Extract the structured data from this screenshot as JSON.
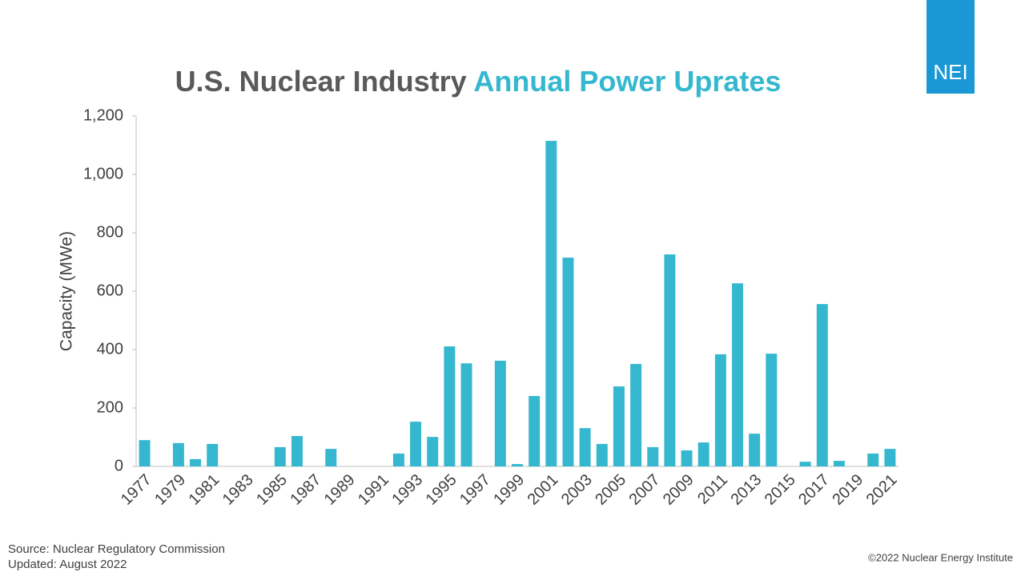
{
  "chart_data": {
    "type": "bar",
    "title": "U.S. Nuclear Industry",
    "title_highlight": "Annual Power Uprates",
    "title_color": "#595959",
    "highlight_color": "#35b8cf",
    "y_label": "Capacity (MWe)",
    "categories": [
      "1977",
      null,
      "1979",
      null,
      "1981",
      null,
      "1983",
      null,
      "1985",
      null,
      "1987",
      null,
      "1989",
      null,
      "1991",
      null,
      "1993",
      null,
      "1995",
      null,
      "1997",
      null,
      "1999",
      null,
      "2001",
      null,
      "2003",
      null,
      "2005",
      null,
      "2007",
      null,
      "2009",
      null,
      "2011",
      null,
      "2013",
      null,
      "2015",
      null,
      "2017",
      null,
      "2019",
      null,
      "2021"
    ],
    "values": [
      90,
      0,
      80,
      25,
      77,
      0,
      0,
      0,
      66,
      104,
      0,
      60,
      0,
      0,
      0,
      44,
      153,
      101,
      411,
      353,
      0,
      362,
      8,
      241,
      1115,
      715,
      131,
      77,
      274,
      351,
      66,
      726,
      55,
      82,
      384,
      627,
      112,
      386,
      0,
      16,
      556,
      19,
      0,
      44,
      60
    ],
    "color": "#35b8cf",
    "ylim": [
      0,
      1200
    ],
    "yticks": [
      0,
      200,
      400,
      600,
      800,
      {
        "value": 1000,
        "label": "1,000"
      },
      {
        "value": 1200,
        "label": "1,200"
      }
    ],
    "grid": false
  },
  "footer": {
    "source": "Source: Nuclear Regulatory Commission",
    "updated": "Updated: August 2022",
    "copyright": "©2022 Nuclear Energy Institute"
  },
  "logo": "NEI"
}
